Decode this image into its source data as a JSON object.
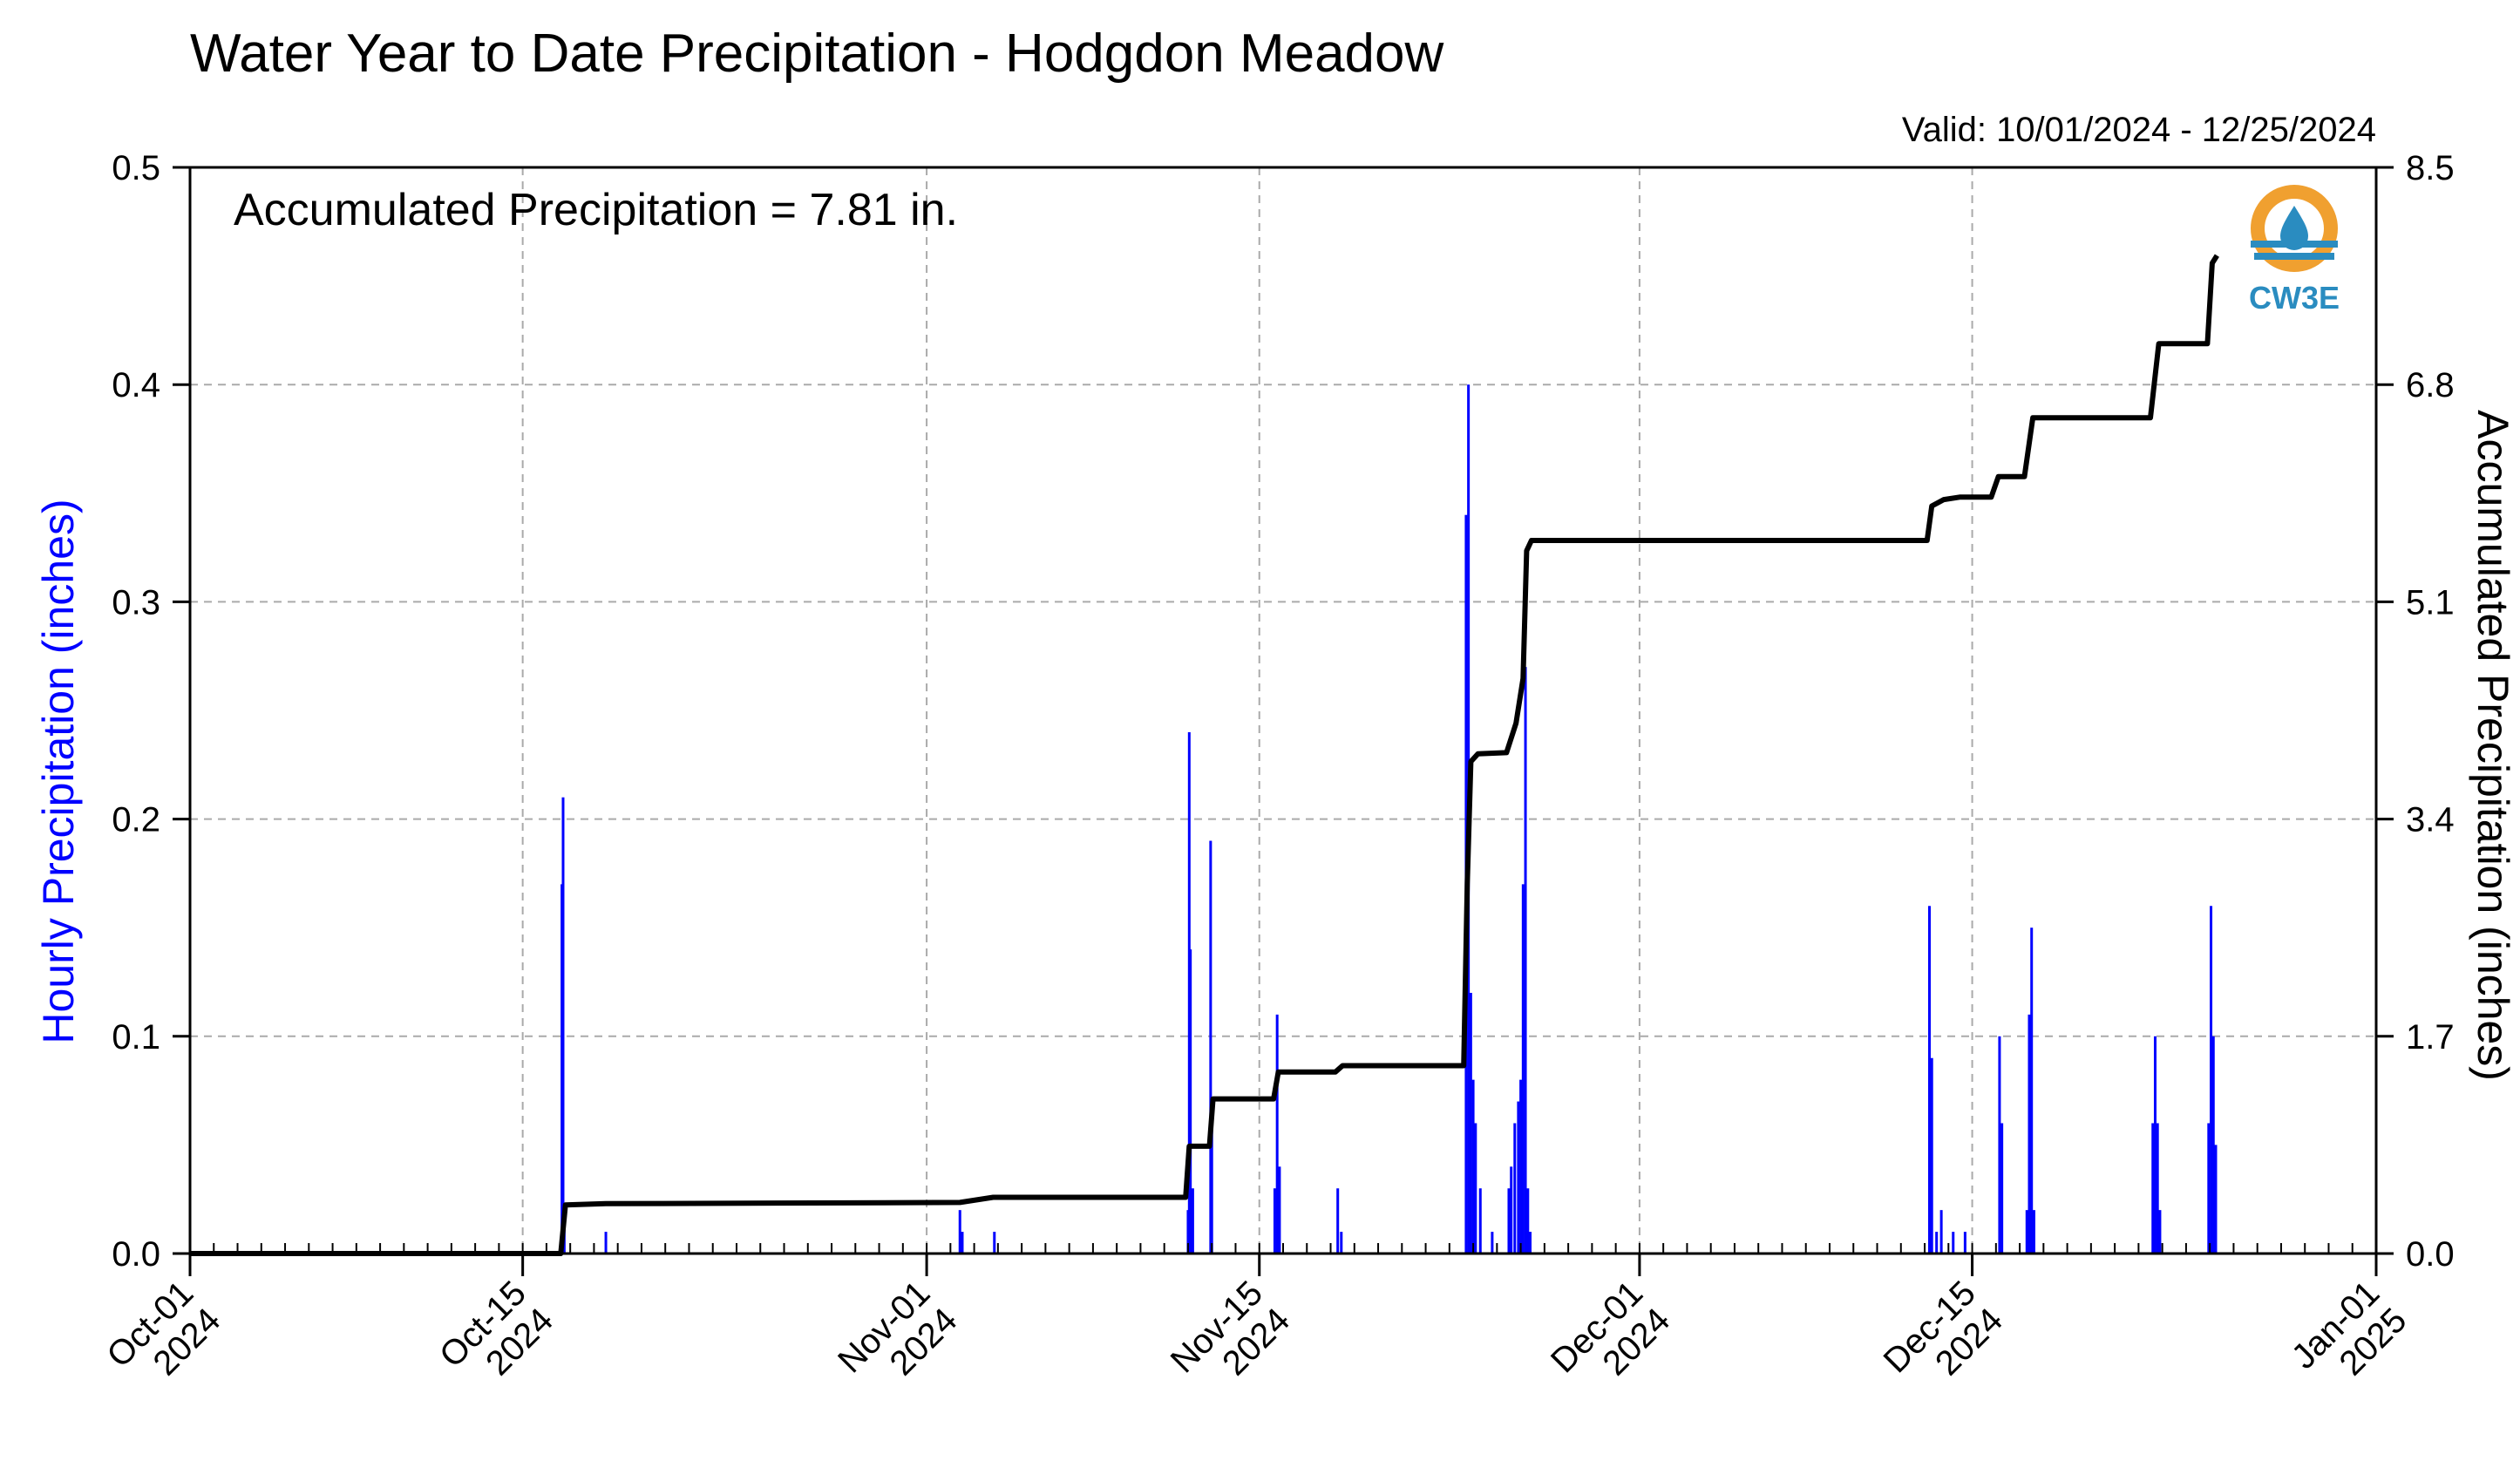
{
  "chart_data": {
    "type": "bar+line",
    "title": "Water Year to Date Precipitation - Hodgdon Meadow",
    "valid_text": "Valid: 10/01/2024 - 12/25/2024",
    "annotation": "Accumulated Precipitation = 7.81 in.",
    "logo_text": "CW3E",
    "ylabel_left": "Hourly Precipitation (inches)",
    "ylabel_right": "Accumulated Precipitation (inches)",
    "x_range_days": [
      0,
      92
    ],
    "ylim_left": [
      0,
      0.5
    ],
    "ylim_right": [
      0,
      8.5
    ],
    "yticks_left": [
      "0.0",
      "0.1",
      "0.2",
      "0.3",
      "0.4",
      "0.5"
    ],
    "yticks_right": [
      "0.0",
      "1.7",
      "3.4",
      "5.1",
      "6.8",
      "8.5"
    ],
    "xticks": [
      {
        "day": 0,
        "label": [
          "Oct-01",
          "2024"
        ]
      },
      {
        "day": 14,
        "label": [
          "Oct-15",
          "2024"
        ]
      },
      {
        "day": 31,
        "label": [
          "Nov-01",
          "2024"
        ]
      },
      {
        "day": 45,
        "label": [
          "Nov-15",
          "2024"
        ]
      },
      {
        "day": 61,
        "label": [
          "Dec-01",
          "2024"
        ]
      },
      {
        "day": 75,
        "label": [
          "Dec-15",
          "2024"
        ]
      },
      {
        "day": 92,
        "label": [
          "Jan-01",
          "2025"
        ]
      }
    ],
    "grid": true,
    "colors": {
      "bars": "#0000ff",
      "line": "#000000",
      "grid": "#aaaaaa",
      "logo_orange": "#f0a030",
      "logo_blue": "#2a8cc0"
    },
    "hourly_precip": [
      {
        "day": 15.65,
        "value": 0.17
      },
      {
        "day": 15.7,
        "value": 0.21
      },
      {
        "day": 15.75,
        "value": 0.02
      },
      {
        "day": 17.5,
        "value": 0.01
      },
      {
        "day": 32.4,
        "value": 0.02
      },
      {
        "day": 32.5,
        "value": 0.01
      },
      {
        "day": 33.85,
        "value": 0.01
      },
      {
        "day": 42.0,
        "value": 0.02
      },
      {
        "day": 42.05,
        "value": 0.24
      },
      {
        "day": 42.1,
        "value": 0.14
      },
      {
        "day": 42.2,
        "value": 0.03
      },
      {
        "day": 42.95,
        "value": 0.19
      },
      {
        "day": 43.0,
        "value": 0.06
      },
      {
        "day": 45.65,
        "value": 0.03
      },
      {
        "day": 45.75,
        "value": 0.11
      },
      {
        "day": 45.85,
        "value": 0.04
      },
      {
        "day": 48.3,
        "value": 0.03
      },
      {
        "day": 48.45,
        "value": 0.01
      },
      {
        "day": 53.7,
        "value": 0.34
      },
      {
        "day": 53.8,
        "value": 0.4
      },
      {
        "day": 53.9,
        "value": 0.12
      },
      {
        "day": 54.0,
        "value": 0.08
      },
      {
        "day": 54.1,
        "value": 0.06
      },
      {
        "day": 54.3,
        "value": 0.03
      },
      {
        "day": 54.8,
        "value": 0.01
      },
      {
        "day": 55.5,
        "value": 0.03
      },
      {
        "day": 55.6,
        "value": 0.04
      },
      {
        "day": 55.75,
        "value": 0.06
      },
      {
        "day": 55.9,
        "value": 0.07
      },
      {
        "day": 56.0,
        "value": 0.08
      },
      {
        "day": 56.1,
        "value": 0.17
      },
      {
        "day": 56.2,
        "value": 0.27
      },
      {
        "day": 56.3,
        "value": 0.03
      },
      {
        "day": 56.4,
        "value": 0.01
      },
      {
        "day": 73.2,
        "value": 0.16
      },
      {
        "day": 73.3,
        "value": 0.09
      },
      {
        "day": 73.5,
        "value": 0.01
      },
      {
        "day": 73.7,
        "value": 0.02
      },
      {
        "day": 74.2,
        "value": 0.01
      },
      {
        "day": 74.7,
        "value": 0.01
      },
      {
        "day": 76.15,
        "value": 0.1
      },
      {
        "day": 76.25,
        "value": 0.06
      },
      {
        "day": 77.3,
        "value": 0.02
      },
      {
        "day": 77.4,
        "value": 0.11
      },
      {
        "day": 77.5,
        "value": 0.15
      },
      {
        "day": 77.6,
        "value": 0.02
      },
      {
        "day": 82.6,
        "value": 0.06
      },
      {
        "day": 82.7,
        "value": 0.1
      },
      {
        "day": 82.8,
        "value": 0.06
      },
      {
        "day": 82.9,
        "value": 0.02
      },
      {
        "day": 84.95,
        "value": 0.06
      },
      {
        "day": 85.05,
        "value": 0.16
      },
      {
        "day": 85.15,
        "value": 0.1
      },
      {
        "day": 85.25,
        "value": 0.05
      }
    ],
    "accumulated": [
      {
        "day": 0,
        "value": 0
      },
      {
        "day": 15.6,
        "value": 0
      },
      {
        "day": 15.8,
        "value": 0.38
      },
      {
        "day": 17.5,
        "value": 0.39
      },
      {
        "day": 32.4,
        "value": 0.4
      },
      {
        "day": 33.8,
        "value": 0.44
      },
      {
        "day": 41.9,
        "value": 0.44
      },
      {
        "day": 42.05,
        "value": 0.84
      },
      {
        "day": 42.9,
        "value": 0.84
      },
      {
        "day": 43.05,
        "value": 1.21
      },
      {
        "day": 45.6,
        "value": 1.21
      },
      {
        "day": 45.8,
        "value": 1.42
      },
      {
        "day": 48.2,
        "value": 1.42
      },
      {
        "day": 48.5,
        "value": 1.47
      },
      {
        "day": 53.6,
        "value": 1.47
      },
      {
        "day": 53.75,
        "value": 2.9
      },
      {
        "day": 53.9,
        "value": 3.85
      },
      {
        "day": 54.2,
        "value": 3.91
      },
      {
        "day": 55.4,
        "value": 3.92
      },
      {
        "day": 55.8,
        "value": 4.15
      },
      {
        "day": 56.1,
        "value": 4.5
      },
      {
        "day": 56.25,
        "value": 5.5
      },
      {
        "day": 56.45,
        "value": 5.58
      },
      {
        "day": 73.1,
        "value": 5.58
      },
      {
        "day": 73.3,
        "value": 5.85
      },
      {
        "day": 73.8,
        "value": 5.9
      },
      {
        "day": 74.5,
        "value": 5.92
      },
      {
        "day": 75.8,
        "value": 5.92
      },
      {
        "day": 76.1,
        "value": 6.08
      },
      {
        "day": 77.2,
        "value": 6.08
      },
      {
        "day": 77.55,
        "value": 6.54
      },
      {
        "day": 82.5,
        "value": 6.54
      },
      {
        "day": 82.85,
        "value": 7.12
      },
      {
        "day": 84.9,
        "value": 7.12
      },
      {
        "day": 85.1,
        "value": 7.75
      },
      {
        "day": 85.3,
        "value": 7.81
      }
    ]
  }
}
